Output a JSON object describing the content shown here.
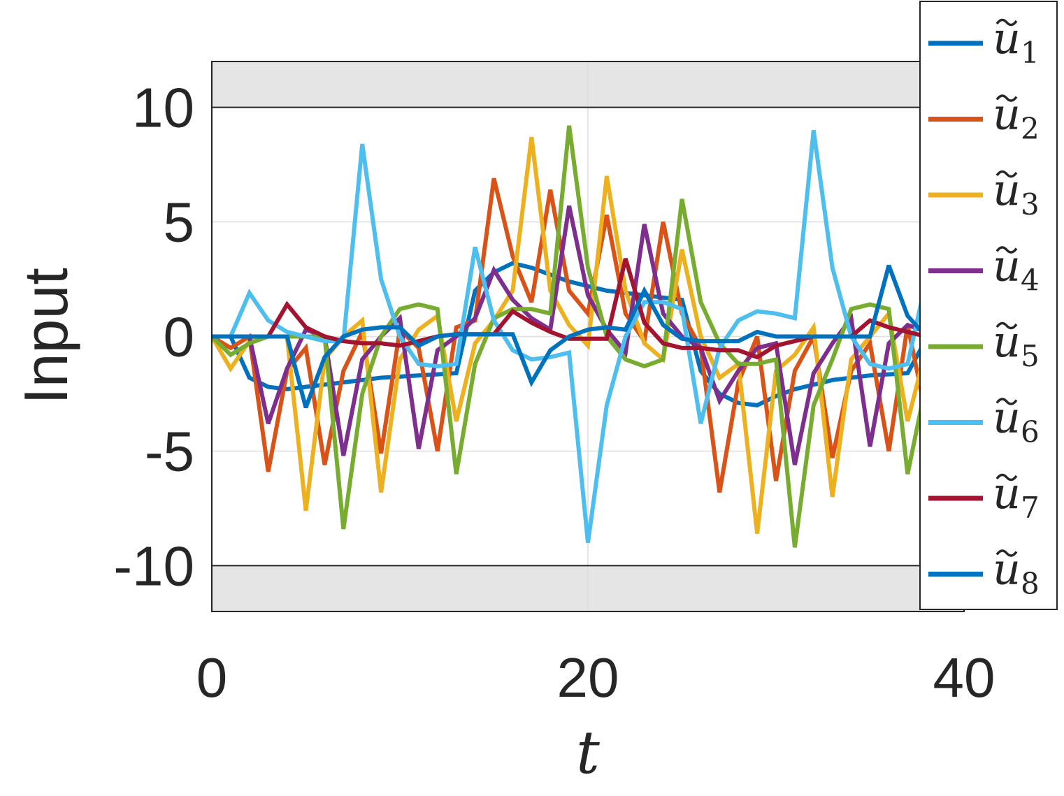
{
  "chart_data": {
    "type": "line",
    "title": "",
    "xlabel": "t",
    "ylabel": "Input",
    "xlim": [
      0,
      40
    ],
    "ylim": [
      -12,
      12
    ],
    "xticks": [
      "0",
      "20",
      "40"
    ],
    "yticks": [
      "10",
      "5",
      "0",
      "-5",
      "-10"
    ],
    "constraint_bounds": [
      -10,
      10
    ],
    "grid": true,
    "legend_position": "right",
    "series": [
      {
        "name": "ũ1",
        "symbol": "u",
        "subscript": "1",
        "color": "#0072BD",
        "x": [
          0,
          1,
          2,
          3,
          4,
          5,
          6,
          7,
          8,
          9,
          10,
          11,
          12,
          13,
          14,
          15,
          16,
          17,
          18,
          19,
          20,
          21,
          22,
          23,
          24,
          25,
          26,
          27,
          28,
          29,
          30,
          31,
          32,
          33,
          34,
          35,
          36,
          37,
          38
        ],
        "y": [
          0,
          0,
          -1.8,
          -2.2,
          -2.3,
          -2.2,
          -2.1,
          -2.0,
          -1.9,
          -1.8,
          -1.75,
          -1.7,
          -1.65,
          -1.6,
          2.0,
          2.8,
          3.2,
          3.0,
          2.7,
          2.4,
          2.2,
          2.0,
          1.9,
          1.8,
          1.7,
          1.6,
          -1.5,
          -2.5,
          -2.9,
          -3.0,
          -2.6,
          -2.3,
          -2.1,
          -1.9,
          -1.8,
          -1.7,
          -1.65,
          -1.6,
          -0.1
        ]
      },
      {
        "name": "ũ2",
        "symbol": "u",
        "subscript": "2",
        "color": "#D95319",
        "x": [
          0,
          1,
          2,
          3,
          4,
          5,
          6,
          7,
          8,
          9,
          10,
          11,
          12,
          13,
          14,
          15,
          16,
          17,
          18,
          19,
          20,
          21,
          22,
          23,
          24,
          25,
          26,
          27,
          28,
          29,
          30,
          31,
          32,
          33,
          34,
          35,
          36,
          37,
          38
        ],
        "y": [
          0,
          -0.5,
          0,
          -5.9,
          -1.5,
          -0.5,
          -5.6,
          -1.5,
          0.2,
          -5.1,
          0.3,
          -0.5,
          -5.0,
          0.4,
          0.7,
          6.9,
          3.5,
          1.5,
          6.4,
          2.0,
          1.0,
          5.3,
          1.0,
          -0.2,
          5.0,
          1.0,
          -0.5,
          -6.8,
          -2.0,
          0,
          -6.3,
          -1.5,
          0,
          -5.3,
          -1.5,
          -0.3,
          -5.0,
          0.5,
          -3.5
        ]
      },
      {
        "name": "ũ3",
        "symbol": "u",
        "subscript": "3",
        "color": "#EDB120",
        "x": [
          0,
          1,
          2,
          3,
          4,
          5,
          6,
          7,
          8,
          9,
          10,
          11,
          12,
          13,
          14,
          15,
          16,
          17,
          18,
          19,
          20,
          21,
          22,
          23,
          24,
          25,
          26,
          27,
          28,
          29,
          30,
          31,
          32,
          33,
          34,
          35,
          36,
          37,
          38
        ],
        "y": [
          0,
          -1.4,
          -0.2,
          0,
          0,
          -7.6,
          -1.0,
          0,
          0.7,
          -6.8,
          -1.0,
          0.3,
          0.9,
          -3.7,
          -0.3,
          0.7,
          2.0,
          8.7,
          2.0,
          0.5,
          -0.4,
          7.0,
          2.0,
          -0.3,
          -1.0,
          3.8,
          0,
          -1.8,
          -1.2,
          -8.6,
          -1.5,
          -0.8,
          0.4,
          -7.0,
          -1.0,
          0,
          1.0,
          -3.7,
          -0.5
        ]
      },
      {
        "name": "ũ4",
        "symbol": "u",
        "subscript": "4",
        "color": "#7E2F8E",
        "x": [
          0,
          1,
          2,
          3,
          4,
          5,
          6,
          7,
          8,
          9,
          10,
          11,
          12,
          13,
          14,
          15,
          16,
          17,
          18,
          19,
          20,
          21,
          22,
          23,
          24,
          25,
          26,
          27,
          28,
          29,
          30,
          31,
          32,
          33,
          34,
          35,
          36,
          37,
          38
        ],
        "y": [
          0,
          0,
          0,
          -3.8,
          -1.4,
          0.3,
          0,
          -5.2,
          -1.0,
          0,
          0.8,
          -4.9,
          -0.6,
          0,
          0.8,
          2.9,
          1.6,
          0.8,
          0.3,
          5.7,
          1.8,
          0.3,
          -0.7,
          4.9,
          1.0,
          0,
          -0.5,
          -2.8,
          -1.5,
          -0.5,
          -0.3,
          -5.6,
          -1.6,
          -0.3,
          0.8,
          -4.8,
          -0.3,
          0.5,
          0.2
        ]
      },
      {
        "name": "ũ5",
        "symbol": "u",
        "subscript": "5",
        "color": "#77AC30",
        "x": [
          0,
          1,
          2,
          3,
          4,
          5,
          6,
          7,
          8,
          9,
          10,
          11,
          12,
          13,
          14,
          15,
          16,
          17,
          18,
          19,
          20,
          21,
          22,
          23,
          24,
          25,
          26,
          27,
          28,
          29,
          30,
          31,
          32,
          33,
          34,
          35,
          36,
          37,
          38
        ],
        "y": [
          0,
          -0.8,
          -0.3,
          0,
          0,
          0,
          0,
          -8.4,
          -2.5,
          0,
          1.2,
          1.4,
          1.2,
          -6.0,
          -1.2,
          0.8,
          1.2,
          1.2,
          1.0,
          9.2,
          3.0,
          0,
          -1.0,
          -1.3,
          -1.0,
          6.0,
          1.5,
          -0.3,
          -1.2,
          -1.2,
          -1.0,
          -9.2,
          -3.0,
          -1.0,
          1.2,
          1.4,
          1.2,
          -6.0,
          -2.0
        ]
      },
      {
        "name": "ũ6",
        "symbol": "u",
        "subscript": "6",
        "color": "#4DBEEE",
        "x": [
          0,
          1,
          2,
          3,
          4,
          5,
          6,
          7,
          8,
          9,
          10,
          11,
          12,
          13,
          14,
          15,
          16,
          17,
          18,
          19,
          20,
          21,
          22,
          23,
          24,
          25,
          26,
          27,
          28,
          29,
          30,
          31,
          32,
          33,
          34,
          35,
          36,
          37,
          38
        ],
        "y": [
          0,
          0,
          1.9,
          0.7,
          0.2,
          0,
          -0.2,
          -0.2,
          8.4,
          2.5,
          0,
          -1.2,
          -1.3,
          -1.2,
          3.9,
          0.7,
          -0.6,
          -1.0,
          -0.9,
          -0.7,
          -9.0,
          -3.0,
          0,
          1.5,
          1.5,
          1.2,
          -3.8,
          -0.5,
          0.7,
          1.1,
          1.0,
          0.8,
          9.0,
          3.0,
          0,
          -1.2,
          -1.4,
          -1.2,
          2.5
        ]
      },
      {
        "name": "ũ7",
        "symbol": "u",
        "subscript": "7",
        "color": "#A2142F",
        "x": [
          0,
          1,
          2,
          3,
          4,
          5,
          6,
          7,
          8,
          9,
          10,
          11,
          12,
          13,
          14,
          15,
          16,
          17,
          18,
          19,
          20,
          21,
          22,
          23,
          24,
          25,
          26,
          27,
          28,
          29,
          30,
          31,
          32,
          33,
          34,
          35,
          36,
          37,
          38
        ],
        "y": [
          0,
          0,
          0,
          0,
          1.4,
          0.4,
          0,
          -0.2,
          -0.3,
          -0.3,
          -0.4,
          -0.2,
          0,
          0.1,
          0.1,
          0.1,
          1.1,
          0.6,
          0.2,
          -0.1,
          -0.1,
          -0.1,
          3.4,
          0.6,
          -0.3,
          -0.5,
          -0.5,
          -0.6,
          -0.6,
          -0.9,
          -0.4,
          -0.2,
          0,
          0,
          0,
          0.7,
          0.4,
          0.2,
          0
        ]
      },
      {
        "name": "ũ8",
        "symbol": "u",
        "subscript": "8",
        "color": "#0072BD",
        "x": [
          0,
          1,
          2,
          3,
          4,
          5,
          6,
          7,
          8,
          9,
          10,
          11,
          12,
          13,
          14,
          15,
          16,
          17,
          18,
          19,
          20,
          21,
          22,
          23,
          24,
          25,
          26,
          27,
          28,
          29,
          30,
          31,
          32,
          33,
          34,
          35,
          36,
          37,
          38
        ],
        "y": [
          0,
          0,
          0,
          0,
          0,
          -3.1,
          -0.9,
          0,
          0.3,
          0.4,
          0.4,
          -0.4,
          0,
          0.1,
          0.1,
          0.1,
          0.1,
          -2.0,
          -0.6,
          0,
          0.3,
          0.4,
          0.3,
          2.0,
          0.5,
          -0.1,
          -0.2,
          -0.2,
          -0.2,
          0.2,
          0,
          0,
          0,
          0,
          0,
          0,
          3.1,
          0.9,
          0
        ]
      }
    ]
  }
}
